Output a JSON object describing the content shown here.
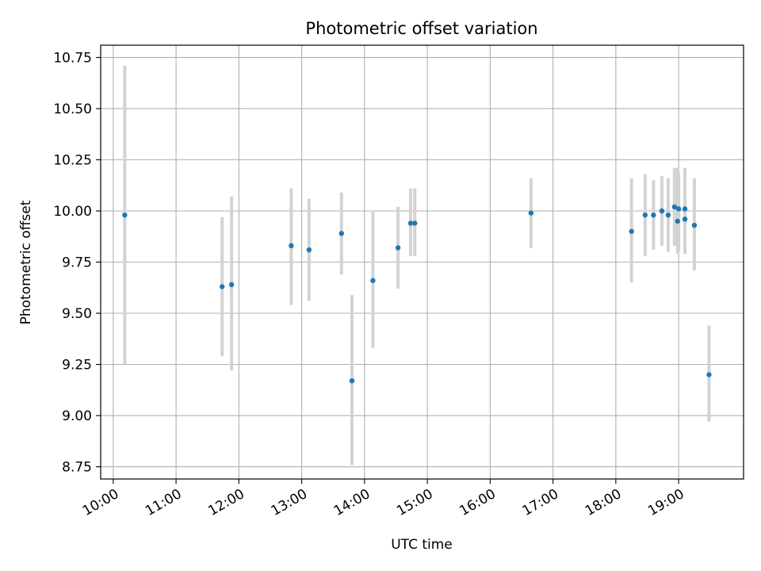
{
  "chart_data": {
    "type": "scatter",
    "title": "Photometric offset variation",
    "xlabel": "UTC time",
    "ylabel": "Photometric offset",
    "x_unit": "UTC time of day (HH:MM)",
    "xlim": [
      "09:48",
      "20:02"
    ],
    "ylim": [
      8.69,
      10.81
    ],
    "grid": true,
    "x_ticks": [
      "10:00",
      "11:00",
      "12:00",
      "13:00",
      "14:00",
      "15:00",
      "16:00",
      "17:00",
      "18:00",
      "19:00"
    ],
    "y_ticks": [
      8.75,
      9.0,
      9.25,
      9.5,
      9.75,
      10.0,
      10.25,
      10.5,
      10.75
    ],
    "y_tick_labels": [
      "8.75",
      "9.00",
      "9.25",
      "9.50",
      "9.75",
      "10.00",
      "10.25",
      "10.50",
      "10.75"
    ],
    "point_color": "#1f77b4",
    "errorbar_color": "#d3d3d3",
    "points": [
      {
        "x": "10:11",
        "y": 9.98,
        "ylo": 9.25,
        "yhi": 10.71
      },
      {
        "x": "11:44",
        "y": 9.63,
        "ylo": 9.29,
        "yhi": 9.97
      },
      {
        "x": "11:53",
        "y": 9.64,
        "ylo": 9.22,
        "yhi": 10.07
      },
      {
        "x": "12:50",
        "y": 9.83,
        "ylo": 9.54,
        "yhi": 10.11
      },
      {
        "x": "13:07",
        "y": 9.81,
        "ylo": 9.56,
        "yhi": 10.06
      },
      {
        "x": "13:38",
        "y": 9.89,
        "ylo": 9.69,
        "yhi": 10.09
      },
      {
        "x": "13:48",
        "y": 9.17,
        "ylo": 8.76,
        "yhi": 9.59
      },
      {
        "x": "14:08",
        "y": 9.66,
        "ylo": 9.33,
        "yhi": 10.0
      },
      {
        "x": "14:32",
        "y": 9.82,
        "ylo": 9.62,
        "yhi": 10.02
      },
      {
        "x": "14:44",
        "y": 9.94,
        "ylo": 9.78,
        "yhi": 10.11
      },
      {
        "x": "14:48",
        "y": 9.94,
        "ylo": 9.78,
        "yhi": 10.11
      },
      {
        "x": "16:39",
        "y": 9.99,
        "ylo": 9.82,
        "yhi": 10.16
      },
      {
        "x": "18:15",
        "y": 9.9,
        "ylo": 9.65,
        "yhi": 10.16
      },
      {
        "x": "18:28",
        "y": 9.98,
        "ylo": 9.78,
        "yhi": 10.18
      },
      {
        "x": "18:36",
        "y": 9.98,
        "ylo": 9.81,
        "yhi": 10.15
      },
      {
        "x": "18:44",
        "y": 10.0,
        "ylo": 9.83,
        "yhi": 10.17
      },
      {
        "x": "18:50",
        "y": 9.98,
        "ylo": 9.8,
        "yhi": 10.16
      },
      {
        "x": "18:56",
        "y": 10.02,
        "ylo": 9.83,
        "yhi": 10.21
      },
      {
        "x": "18:59",
        "y": 9.95,
        "ylo": 9.79,
        "yhi": 10.21
      },
      {
        "x": "19:00",
        "y": 10.01,
        "ylo": 9.8,
        "yhi": 10.19
      },
      {
        "x": "19:06",
        "y": 10.01,
        "ylo": 9.8,
        "yhi": 10.21
      },
      {
        "x": "19:06",
        "y": 9.96,
        "ylo": 9.79,
        "yhi": 10.13
      },
      {
        "x": "19:15",
        "y": 9.93,
        "ylo": 9.71,
        "yhi": 10.16
      },
      {
        "x": "19:29",
        "y": 9.2,
        "ylo": 8.97,
        "yhi": 9.44
      }
    ]
  }
}
